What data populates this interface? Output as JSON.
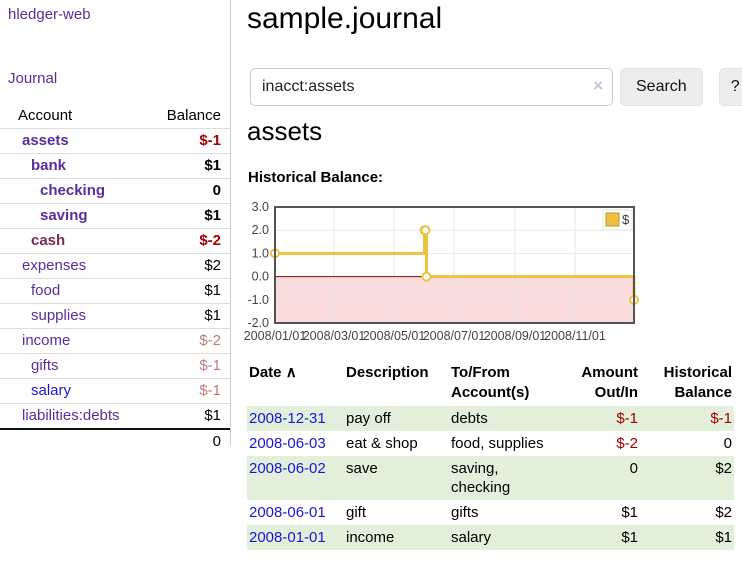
{
  "palette": {
    "purple": "#5b2d9c",
    "maroon": "#7a2a50",
    "blue": "#1a16d9",
    "red_strong": "#a40000",
    "red_pale": "#bf7b7b",
    "gold": "#edc240",
    "gold_border": "#b8962e",
    "pink_fill": "#fbdcdc",
    "zero_line": "#8b0000",
    "row_green": "#e2efda",
    "frame": "#545454",
    "grid": "#e7e7e7",
    "clear_x": "#c9bede",
    "btn_bg": "#ededed"
  },
  "sidebar": {
    "app_title": "hledger-web",
    "journal_label": "Journal",
    "accounts": {
      "header_account": "Account",
      "header_balance": "Balance",
      "rows": [
        {
          "account": "assets",
          "indent": 1,
          "emph": true,
          "balance": "$-1",
          "neg": "strong"
        },
        {
          "account": "bank",
          "indent": 2,
          "emph": true,
          "balance": "$1"
        },
        {
          "account": "checking",
          "indent": 3,
          "emph": true,
          "balance": "0"
        },
        {
          "account": "saving",
          "indent": 3,
          "emph": true,
          "balance": "$1"
        },
        {
          "account": "cash",
          "indent": 2,
          "emph": true,
          "balance": "$-2",
          "neg": "strong",
          "label_variant": "maroon"
        },
        {
          "account": "expenses",
          "indent": 1,
          "balance": "$2"
        },
        {
          "account": "food",
          "indent": 2,
          "balance": "$1"
        },
        {
          "account": "supplies",
          "indent": 2,
          "balance": "$1"
        },
        {
          "account": "income",
          "indent": 1,
          "balance": "$-2",
          "neg": "pale"
        },
        {
          "account": "gifts",
          "indent": 2,
          "balance": "$-1",
          "neg": "pale"
        },
        {
          "account": "salary",
          "indent": 2,
          "balance": "$-1",
          "neg": "pale",
          "label_variant": "blue"
        },
        {
          "account": "liabilities:debts",
          "indent": 1,
          "balance": "$1"
        }
      ],
      "total": "0"
    }
  },
  "main": {
    "title": "sample.journal",
    "search": {
      "value": "inacct:assets",
      "clear_icon": "×",
      "button_label": "Search",
      "help_label": "?"
    },
    "account_heading": "assets"
  },
  "chart_data": {
    "type": "line",
    "title": "Historical Balance:",
    "step": true,
    "xlim": [
      "2008-01-01",
      "2008-12-31"
    ],
    "ylim": [
      -2,
      3
    ],
    "y_ticks": [
      "3.0",
      "2.0",
      "1.0",
      "0.0",
      "-1.0",
      "-2.0"
    ],
    "x_ticks": [
      {
        "label": "2008/01/01",
        "date": "2008-01-01"
      },
      {
        "label": "2008/03/01",
        "date": "2008-03-01"
      },
      {
        "label": "2008/05/01",
        "date": "2008-05-01"
      },
      {
        "label": "2008/07/01",
        "date": "2008-07-01"
      },
      {
        "label": "2008/09/01",
        "date": "2008-09-01"
      },
      {
        "label": "2008/11/01",
        "date": "2008-11-01"
      }
    ],
    "series": [
      {
        "name": "$",
        "x": [
          "2008-01-01",
          "2008-06-01",
          "2008-06-02",
          "2008-06-03",
          "2008-12-31"
        ],
        "values": [
          1,
          2,
          2,
          0,
          -1
        ]
      }
    ],
    "legend_position": "top-right",
    "negative_region_shaded": true,
    "grid": true
  },
  "transactions": {
    "headers": [
      {
        "label": "Date",
        "sort_icon": "∧",
        "align": "left"
      },
      {
        "label": "Description",
        "align": "left"
      },
      {
        "label": "To/From Account(s)",
        "align": "left"
      },
      {
        "label": "Amount Out/In",
        "align": "right"
      },
      {
        "label": "Historical Balance",
        "align": "right"
      }
    ],
    "rows": [
      {
        "date": "2008-12-31",
        "description": "pay off",
        "accounts": "debts",
        "amount": "$-1",
        "balance": "$-1"
      },
      {
        "date": "2008-06-03",
        "description": "eat & shop",
        "accounts": "food, supplies",
        "amount": "$-2",
        "balance": "0"
      },
      {
        "date": "2008-06-02",
        "description": "save",
        "accounts": "saving, checking",
        "amount": "0",
        "balance": "$2"
      },
      {
        "date": "2008-06-01",
        "description": "gift",
        "accounts": "gifts",
        "amount": "$1",
        "balance": "$2"
      },
      {
        "date": "2008-01-01",
        "description": "income",
        "accounts": "salary",
        "amount": "$1",
        "balance": "$1"
      }
    ]
  }
}
